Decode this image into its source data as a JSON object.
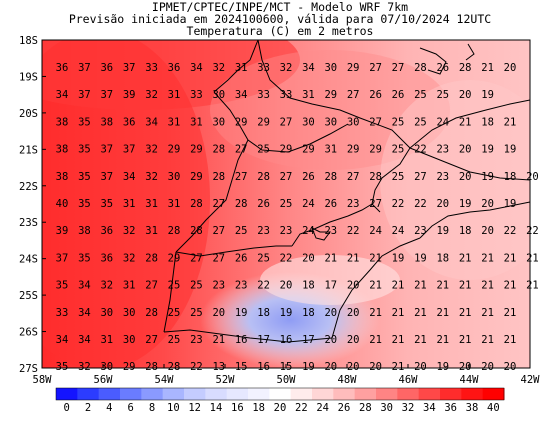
{
  "header": {
    "line1": "IPMET/CPTEC/INPE/MCT - Modelo WRF 7km",
    "line2": "Previsão iniciada em 2024100600, válida para 07/10/2024 12UTC",
    "line3": "Temperatura (C) em 2 metros"
  },
  "map": {
    "lon_range": [
      -58,
      -42
    ],
    "lat_range": [
      -27,
      -18
    ],
    "lat_labels": [
      "18S",
      "19S",
      "20S",
      "21S",
      "22S",
      "23S",
      "24S",
      "25S",
      "26S",
      "27S"
    ],
    "lon_labels": [
      "58W",
      "56W",
      "54W",
      "52W",
      "50W",
      "48W",
      "46W",
      "44W",
      "42W"
    ],
    "grid_values": [
      [
        "36",
        "37",
        "36",
        "37",
        "33",
        "36",
        "34",
        "32",
        "31",
        "33",
        "32",
        "34",
        "30",
        "29",
        "27",
        "27",
        "28",
        "26",
        "28",
        "21",
        "20"
      ],
      [
        "34",
        "37",
        "37",
        "39",
        "32",
        "31",
        "33",
        "30",
        "34",
        "33",
        "33",
        "31",
        "29",
        "27",
        "26",
        "26",
        "25",
        "25",
        "20",
        "19"
      ],
      [
        "38",
        "35",
        "38",
        "36",
        "34",
        "31",
        "31",
        "30",
        "29",
        "29",
        "27",
        "30",
        "30",
        "30",
        "27",
        "25",
        "25",
        "24",
        "21",
        "18",
        "21"
      ],
      [
        "38",
        "35",
        "37",
        "37",
        "32",
        "29",
        "29",
        "28",
        "27",
        "25",
        "29",
        "29",
        "31",
        "29",
        "29",
        "25",
        "22",
        "23",
        "20",
        "19",
        "19"
      ],
      [
        "38",
        "35",
        "37",
        "34",
        "32",
        "30",
        "29",
        "28",
        "27",
        "28",
        "27",
        "26",
        "28",
        "27",
        "28",
        "25",
        "27",
        "23",
        "20",
        "19",
        "18",
        "20"
      ],
      [
        "40",
        "35",
        "35",
        "31",
        "31",
        "31",
        "28",
        "27",
        "28",
        "26",
        "25",
        "24",
        "26",
        "23",
        "27",
        "22",
        "22",
        "20",
        "19",
        "20",
        "19"
      ],
      [
        "39",
        "38",
        "36",
        "32",
        "31",
        "28",
        "28",
        "27",
        "25",
        "23",
        "23",
        "24",
        "23",
        "22",
        "24",
        "24",
        "23",
        "19",
        "18",
        "20",
        "22",
        "22"
      ],
      [
        "37",
        "35",
        "36",
        "32",
        "28",
        "29",
        "27",
        "27",
        "26",
        "25",
        "22",
        "20",
        "21",
        "21",
        "21",
        "19",
        "19",
        "18",
        "21",
        "21",
        "21",
        "21"
      ],
      [
        "35",
        "34",
        "32",
        "31",
        "27",
        "25",
        "25",
        "23",
        "23",
        "22",
        "20",
        "18",
        "17",
        "20",
        "21",
        "21",
        "21",
        "21",
        "21",
        "21",
        "21",
        "21"
      ],
      [
        "33",
        "34",
        "30",
        "30",
        "28",
        "25",
        "25",
        "20",
        "19",
        "18",
        "19",
        "18",
        "20",
        "20",
        "21",
        "21",
        "21",
        "21",
        "21",
        "21",
        "21"
      ],
      [
        "34",
        "34",
        "31",
        "30",
        "27",
        "25",
        "23",
        "21",
        "16",
        "17",
        "16",
        "17",
        "20",
        "20",
        "21",
        "21",
        "21",
        "21",
        "21",
        "21",
        "21"
      ],
      [
        "35",
        "32",
        "30",
        "29",
        "28",
        "28",
        "22",
        "13",
        "15",
        "16",
        "15",
        "19",
        "20",
        "20",
        "20",
        "21",
        "20",
        "19",
        "20",
        "20",
        "20"
      ]
    ]
  },
  "legend": {
    "labels": [
      "0",
      "2",
      "4",
      "6",
      "8",
      "10",
      "12",
      "14",
      "16",
      "18",
      "20",
      "22",
      "24",
      "26",
      "28",
      "30",
      "32",
      "34",
      "36",
      "38",
      "40"
    ],
    "colors": [
      "#1414ff",
      "#2c3cff",
      "#4a5cff",
      "#6a7cff",
      "#8a9aff",
      "#a9b6ff",
      "#c4ccff",
      "#d8dcff",
      "#e6e8ff",
      "#f2f2ff",
      "#ffffff",
      "#ffecec",
      "#ffd6d6",
      "#ffbcbc",
      "#ffa0a0",
      "#ff8484",
      "#ff6666",
      "#ff4848",
      "#ff2c2c",
      "#ff1414",
      "#ff0000"
    ]
  }
}
